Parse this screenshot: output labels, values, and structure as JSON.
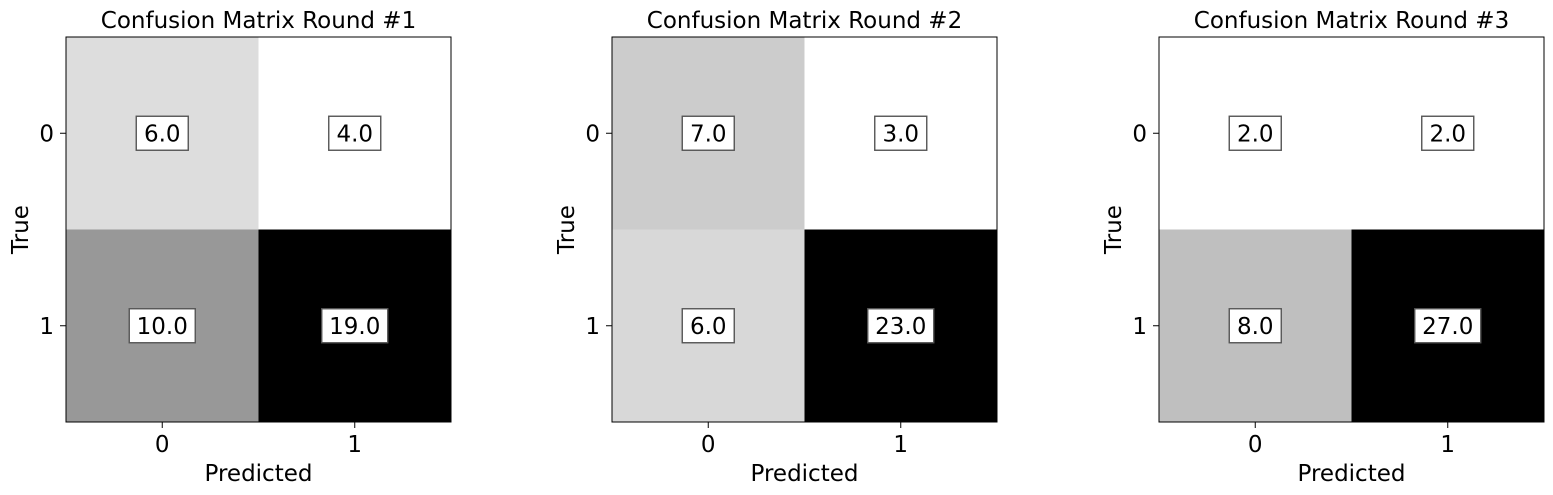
{
  "chart_data": [
    {
      "type": "heatmap",
      "title": "Confusion Matrix Round #1",
      "xlabel": "Predicted",
      "ylabel": "True",
      "x_categories": [
        "0",
        "1"
      ],
      "y_categories": [
        "0",
        "1"
      ],
      "values": [
        [
          6.0,
          4.0
        ],
        [
          10.0,
          19.0
        ]
      ],
      "value_labels": [
        [
          "6.0",
          "4.0"
        ],
        [
          "10.0",
          "19.0"
        ]
      ],
      "colormap": "Greys",
      "colors": [
        [
          "#dddddd",
          "#ffffff"
        ],
        [
          "#989898",
          "#000000"
        ]
      ]
    },
    {
      "type": "heatmap",
      "title": "Confusion Matrix Round #2",
      "xlabel": "Predicted",
      "ylabel": "True",
      "x_categories": [
        "0",
        "1"
      ],
      "y_categories": [
        "0",
        "1"
      ],
      "values": [
        [
          7.0,
          3.0
        ],
        [
          6.0,
          23.0
        ]
      ],
      "value_labels": [
        [
          "7.0",
          "3.0"
        ],
        [
          "6.0",
          "23.0"
        ]
      ],
      "colormap": "Greys",
      "colors": [
        [
          "#cccccc",
          "#ffffff"
        ],
        [
          "#d8d8d8",
          "#000000"
        ]
      ]
    },
    {
      "type": "heatmap",
      "title": "Confusion Matrix Round #3",
      "xlabel": "Predicted",
      "ylabel": "True",
      "x_categories": [
        "0",
        "1"
      ],
      "y_categories": [
        "0",
        "1"
      ],
      "values": [
        [
          2.0,
          2.0
        ],
        [
          8.0,
          27.0
        ]
      ],
      "value_labels": [
        [
          "2.0",
          "2.0"
        ],
        [
          "8.0",
          "27.0"
        ]
      ],
      "colormap": "Greys",
      "colors": [
        [
          "#ffffff",
          "#ffffff"
        ],
        [
          "#bfbfbf",
          "#000000"
        ]
      ]
    }
  ]
}
